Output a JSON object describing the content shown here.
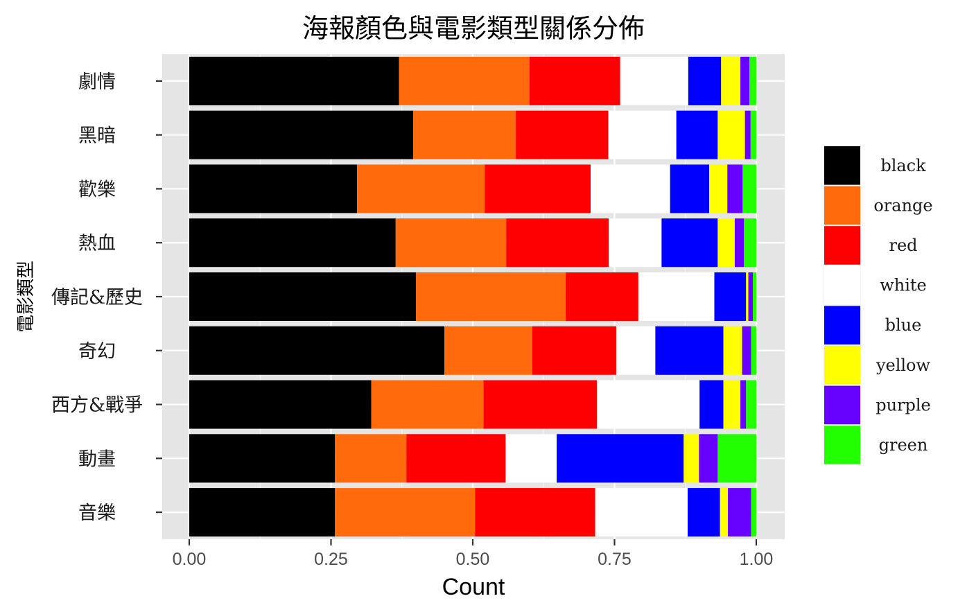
{
  "chart_data": {
    "type": "bar",
    "orientation": "horizontal",
    "stacked": true,
    "title": "海報顏色與電影類型關係分佈",
    "xlabel": "Count",
    "ylabel": "電影類型",
    "xlim": [
      0,
      1
    ],
    "xticks": [
      "0.00",
      "0.25",
      "0.50",
      "0.75",
      "1.00"
    ],
    "xtick_values": [
      0,
      0.25,
      0.5,
      0.75,
      1.0
    ],
    "grid": true,
    "legend_position": "right",
    "categories": [
      "劇情",
      "黑暗",
      "歡樂",
      "熱血",
      "傳記&歷史",
      "奇幻",
      "西方&戰爭",
      "動畫",
      "音樂"
    ],
    "series": [
      {
        "name": "black",
        "color": "#000000",
        "values": [
          0.37,
          0.395,
          0.296,
          0.364,
          0.4,
          0.45,
          0.321,
          0.257,
          0.257
        ]
      },
      {
        "name": "orange",
        "color": "#FF6A0D",
        "values": [
          0.23,
          0.181,
          0.225,
          0.195,
          0.264,
          0.155,
          0.198,
          0.126,
          0.247
        ]
      },
      {
        "name": "red",
        "color": "#FF0000",
        "values": [
          0.16,
          0.163,
          0.187,
          0.181,
          0.128,
          0.148,
          0.2,
          0.175,
          0.212
        ]
      },
      {
        "name": "white",
        "color": "#FFFFFF",
        "values": [
          0.12,
          0.12,
          0.14,
          0.093,
          0.134,
          0.069,
          0.181,
          0.09,
          0.163
        ]
      },
      {
        "name": "blue",
        "color": "#0000FF",
        "values": [
          0.058,
          0.073,
          0.069,
          0.099,
          0.056,
          0.12,
          0.042,
          0.224,
          0.057
        ]
      },
      {
        "name": "yellow",
        "color": "#FFFF00",
        "values": [
          0.034,
          0.048,
          0.032,
          0.03,
          0.004,
          0.033,
          0.03,
          0.027,
          0.014
        ]
      },
      {
        "name": "purple",
        "color": "#6600FF",
        "values": [
          0.016,
          0.01,
          0.027,
          0.016,
          0.008,
          0.016,
          0.01,
          0.033,
          0.041
        ]
      },
      {
        "name": "green",
        "color": "#22FF00",
        "values": [
          0.012,
          0.01,
          0.024,
          0.022,
          0.006,
          0.009,
          0.018,
          0.068,
          0.009
        ]
      }
    ]
  }
}
